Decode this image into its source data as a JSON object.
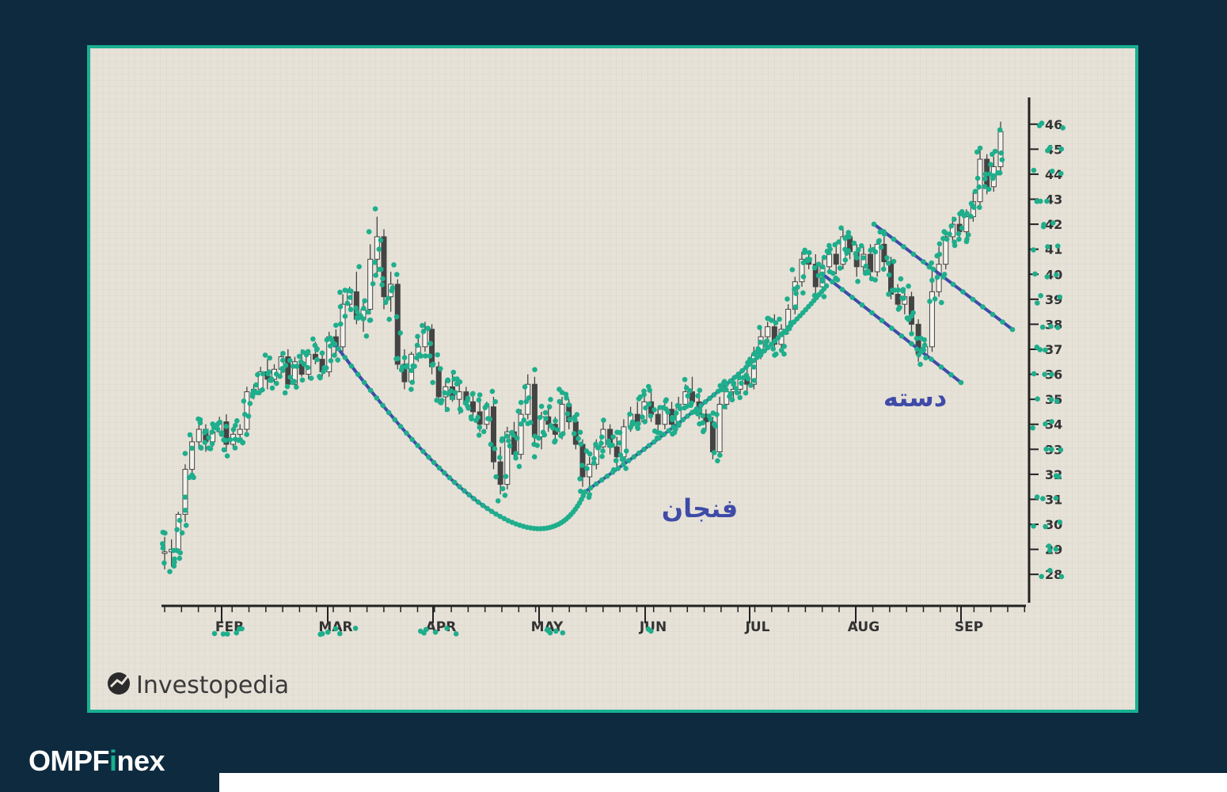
{
  "brand": {
    "part1": "OMPF",
    "part2": "i",
    "part3": "nex"
  },
  "colors": {
    "page_bg": "#0e2a3f",
    "frame_border": "#18b090",
    "plot_bg": "#e6e2d8",
    "grid": "#d6d2c8",
    "trendline": "#3f4ba8",
    "label": "#3f4ba8",
    "marker": "#1fae8c",
    "candle": "#444444"
  },
  "chart_data": {
    "type": "candlestick",
    "title": "",
    "xlabel": "",
    "ylabel": "",
    "x_ticks": [
      "FEB",
      "MAR",
      "APR",
      "MAY",
      "JUN",
      "JUL",
      "AUG",
      "SEP"
    ],
    "y_ticks": [
      28,
      29,
      30,
      31,
      32,
      33,
      34,
      35,
      36,
      37,
      38,
      39,
      40,
      41,
      42,
      43,
      44,
      45,
      46
    ],
    "ylim": [
      27.5,
      46.5
    ],
    "annotations": [
      {
        "label": "فنجان",
        "shape": "cup-arc"
      },
      {
        "label": "دسته",
        "shape": "handle-channel"
      }
    ],
    "watermark": "Investopedia",
    "series": [
      {
        "values": [
          [
            28.9,
            29.5,
            28.2,
            28.9
          ],
          [
            28.9,
            29.4,
            28.3,
            29.0
          ],
          [
            29.0,
            30.5,
            28.8,
            30.4
          ],
          [
            30.4,
            32.4,
            30.1,
            32.2
          ],
          [
            32.2,
            33.5,
            32.0,
            33.3
          ],
          [
            33.3,
            34.1,
            33.0,
            33.8
          ],
          [
            33.8,
            34.0,
            32.9,
            33.3
          ],
          [
            33.3,
            33.9,
            33.1,
            33.7
          ],
          [
            33.7,
            34.3,
            33.6,
            34.1
          ],
          [
            34.1,
            34.4,
            32.9,
            33.2
          ],
          [
            33.2,
            33.9,
            33.0,
            33.6
          ],
          [
            33.6,
            34.0,
            33.3,
            33.8
          ],
          [
            33.8,
            35.5,
            33.7,
            35.3
          ],
          [
            35.3,
            35.6,
            35.0,
            35.4
          ],
          [
            35.4,
            36.3,
            35.2,
            36.1
          ],
          [
            36.1,
            36.6,
            35.4,
            35.8
          ],
          [
            35.8,
            36.4,
            35.6,
            36.2
          ],
          [
            36.2,
            36.9,
            36.0,
            36.7
          ],
          [
            36.7,
            37.0,
            35.5,
            35.6
          ],
          [
            35.6,
            36.7,
            35.5,
            36.5
          ],
          [
            36.5,
            37.0,
            35.9,
            36.0
          ],
          [
            36.0,
            37.0,
            35.8,
            36.8
          ],
          [
            36.8,
            37.3,
            36.4,
            36.6
          ],
          [
            36.6,
            36.9,
            35.9,
            36.1
          ],
          [
            36.1,
            37.7,
            35.9,
            37.5
          ],
          [
            37.5,
            37.8,
            36.7,
            37.1
          ],
          [
            37.1,
            39.2,
            36.9,
            38.8
          ],
          [
            38.8,
            39.5,
            38.6,
            39.3
          ],
          [
            39.3,
            40.1,
            38.0,
            38.2
          ],
          [
            38.2,
            39.0,
            37.7,
            38.6
          ],
          [
            38.6,
            41.2,
            38.4,
            40.6
          ],
          [
            40.6,
            42.3,
            40.0,
            41.5
          ],
          [
            41.5,
            41.8,
            38.6,
            39.1
          ],
          [
            39.1,
            40.1,
            38.5,
            39.6
          ],
          [
            39.6,
            39.8,
            36.2,
            36.4
          ],
          [
            36.4,
            37.0,
            35.4,
            35.7
          ],
          [
            35.7,
            36.9,
            35.6,
            36.8
          ],
          [
            36.8,
            37.5,
            36.5,
            37.1
          ],
          [
            37.1,
            38.1,
            36.9,
            37.8
          ],
          [
            37.8,
            38.0,
            36.0,
            36.3
          ],
          [
            36.3,
            36.5,
            34.8,
            35.1
          ],
          [
            35.1,
            35.8,
            34.5,
            35.5
          ],
          [
            35.5,
            36.0,
            34.9,
            35.0
          ],
          [
            35.0,
            35.6,
            34.4,
            35.3
          ],
          [
            35.3,
            35.5,
            34.7,
            34.9
          ],
          [
            34.9,
            35.3,
            34.3,
            34.5
          ],
          [
            34.5,
            35.0,
            33.7,
            34.0
          ],
          [
            34.0,
            34.9,
            33.8,
            34.7
          ],
          [
            34.7,
            35.1,
            32.2,
            32.5
          ],
          [
            32.5,
            33.1,
            31.2,
            31.6
          ],
          [
            31.6,
            33.9,
            31.4,
            33.7
          ],
          [
            33.7,
            34.1,
            32.6,
            32.8
          ],
          [
            32.8,
            34.6,
            32.6,
            34.4
          ],
          [
            34.4,
            36.0,
            34.2,
            35.6
          ],
          [
            35.6,
            35.9,
            33.2,
            33.5
          ],
          [
            33.5,
            34.5,
            33.0,
            34.3
          ],
          [
            34.3,
            34.8,
            33.7,
            34.0
          ],
          [
            34.0,
            34.3,
            33.4,
            33.6
          ],
          [
            33.6,
            35.1,
            33.4,
            34.8
          ],
          [
            34.8,
            35.0,
            33.8,
            34.1
          ],
          [
            34.1,
            34.3,
            33.0,
            33.2
          ],
          [
            33.2,
            33.4,
            31.5,
            31.9
          ],
          [
            31.9,
            32.7,
            31.1,
            32.4
          ],
          [
            32.4,
            33.4,
            32.2,
            33.1
          ],
          [
            33.1,
            34.1,
            32.9,
            33.8
          ],
          [
            33.8,
            34.0,
            32.8,
            33.1
          ],
          [
            33.1,
            33.5,
            32.3,
            32.7
          ],
          [
            32.7,
            34.2,
            32.5,
            33.9
          ],
          [
            33.9,
            34.7,
            33.7,
            34.4
          ],
          [
            34.4,
            34.9,
            33.9,
            34.1
          ],
          [
            34.1,
            35.2,
            34.0,
            34.9
          ],
          [
            34.9,
            35.3,
            34.1,
            34.4
          ],
          [
            34.4,
            34.7,
            33.6,
            34.0
          ],
          [
            34.0,
            34.9,
            33.8,
            34.6
          ],
          [
            34.6,
            34.9,
            33.8,
            34.0
          ],
          [
            34.0,
            35.1,
            33.9,
            34.8
          ],
          [
            34.8,
            35.6,
            34.6,
            35.3
          ],
          [
            35.3,
            35.9,
            34.7,
            34.9
          ],
          [
            34.9,
            35.4,
            34.2,
            34.4
          ],
          [
            34.4,
            34.6,
            33.8,
            34.1
          ],
          [
            34.1,
            34.3,
            32.6,
            32.9
          ],
          [
            32.9,
            35.1,
            32.7,
            34.8
          ],
          [
            34.8,
            35.6,
            34.6,
            35.3
          ],
          [
            35.3,
            35.6,
            35.0,
            35.4
          ],
          [
            35.4,
            36.1,
            35.2,
            35.9
          ],
          [
            35.9,
            36.4,
            35.3,
            35.6
          ],
          [
            35.6,
            37.1,
            35.4,
            36.8
          ],
          [
            36.8,
            37.8,
            36.6,
            37.5
          ],
          [
            37.5,
            38.1,
            37.3,
            37.9
          ],
          [
            37.9,
            38.4,
            37.0,
            37.2
          ],
          [
            37.2,
            38.0,
            36.9,
            37.8
          ],
          [
            37.8,
            38.8,
            37.6,
            38.6
          ],
          [
            38.6,
            39.9,
            38.4,
            39.7
          ],
          [
            39.7,
            40.9,
            39.5,
            40.6
          ],
          [
            40.6,
            40.9,
            40.2,
            40.4
          ],
          [
            40.4,
            40.8,
            39.1,
            39.5
          ],
          [
            39.5,
            40.6,
            39.3,
            40.3
          ],
          [
            40.3,
            41.1,
            40.1,
            40.8
          ],
          [
            40.8,
            41.3,
            40.0,
            40.4
          ],
          [
            40.4,
            41.8,
            40.2,
            41.5
          ],
          [
            41.5,
            41.7,
            40.6,
            40.9
          ],
          [
            40.9,
            41.2,
            39.9,
            40.3
          ],
          [
            40.3,
            41.1,
            40.1,
            40.8
          ],
          [
            40.8,
            41.2,
            39.8,
            40.1
          ],
          [
            40.1,
            41.4,
            39.9,
            41.2
          ],
          [
            41.2,
            41.5,
            40.3,
            40.5
          ],
          [
            40.5,
            40.7,
            39.0,
            39.2
          ],
          [
            39.2,
            39.6,
            38.5,
            38.8
          ],
          [
            38.8,
            39.4,
            38.4,
            39.1
          ],
          [
            39.1,
            39.3,
            37.7,
            38.0
          ],
          [
            38.0,
            38.2,
            36.5,
            36.8
          ],
          [
            36.8,
            37.3,
            36.7,
            37.1
          ],
          [
            37.1,
            40.2,
            36.9,
            39.3
          ],
          [
            39.3,
            41.1,
            39.1,
            40.4
          ],
          [
            40.4,
            41.7,
            40.2,
            41.5
          ],
          [
            41.5,
            42.3,
            41.3,
            42.0
          ],
          [
            42.0,
            42.4,
            41.5,
            41.7
          ],
          [
            41.7,
            42.6,
            41.5,
            42.3
          ],
          [
            42.3,
            43.3,
            42.1,
            42.9
          ],
          [
            42.9,
            45.1,
            42.7,
            44.6
          ],
          [
            44.6,
            44.8,
            43.2,
            43.5
          ],
          [
            43.5,
            44.7,
            43.3,
            44.3
          ],
          [
            44.3,
            46.1,
            44.1,
            45.7
          ]
        ]
      }
    ]
  },
  "markers": {
    "count": 850,
    "seed": 20240917
  }
}
